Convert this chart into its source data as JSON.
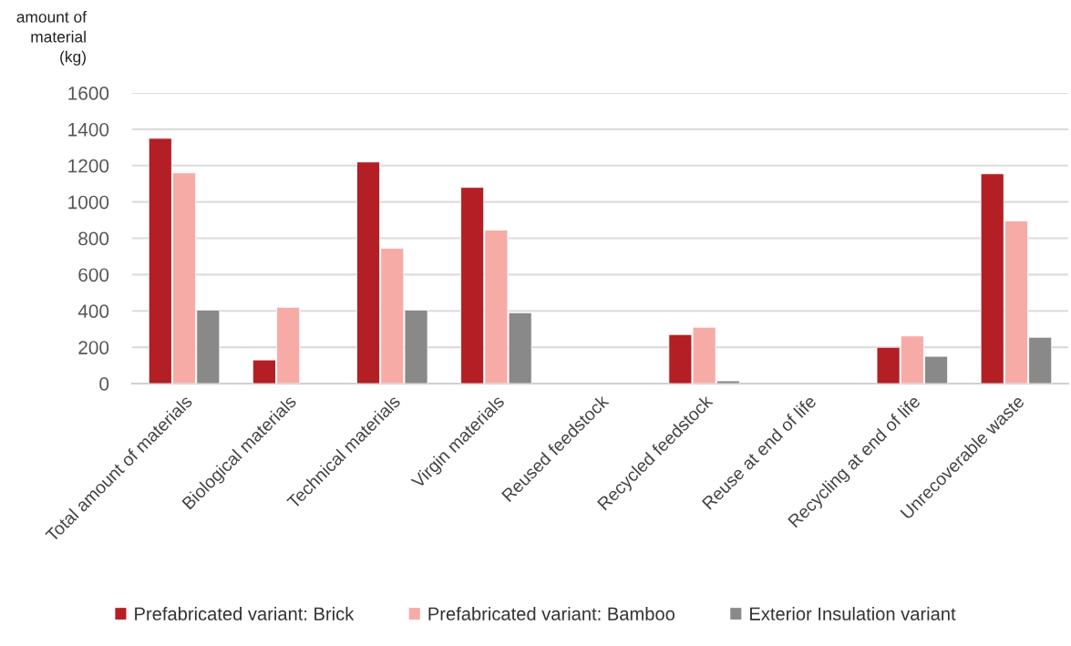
{
  "chart_data": {
    "type": "bar",
    "ylabel": "amount of\nmaterial\n(kg)",
    "categories": [
      "Total amount of materials",
      "Biological materials",
      "Technical materials",
      "Virgin materials",
      "Reused feedstock",
      "Recycled feedstock",
      "Reuse at end of life",
      "Recycling at end of life",
      "Unrecoverable waste"
    ],
    "series": [
      {
        "name": "Prefabricated variant: Brick",
        "color": "#b31f24",
        "values": [
          1350,
          130,
          1220,
          1080,
          null,
          270,
          null,
          200,
          1155
        ]
      },
      {
        "name": "Prefabricated variant: Bamboo",
        "color": "#f7aba6",
        "values": [
          1160,
          420,
          745,
          845,
          null,
          310,
          null,
          262,
          895
        ]
      },
      {
        "name": "Exterior Insulation variant",
        "color": "#898989",
        "values": [
          405,
          null,
          405,
          390,
          null,
          15,
          null,
          150,
          255
        ]
      }
    ],
    "ylim": [
      0,
      1600
    ],
    "yticks": [
      0,
      200,
      400,
      600,
      800,
      1000,
      1200,
      1400,
      1600
    ],
    "grid": "y",
    "legend": "bottom"
  }
}
